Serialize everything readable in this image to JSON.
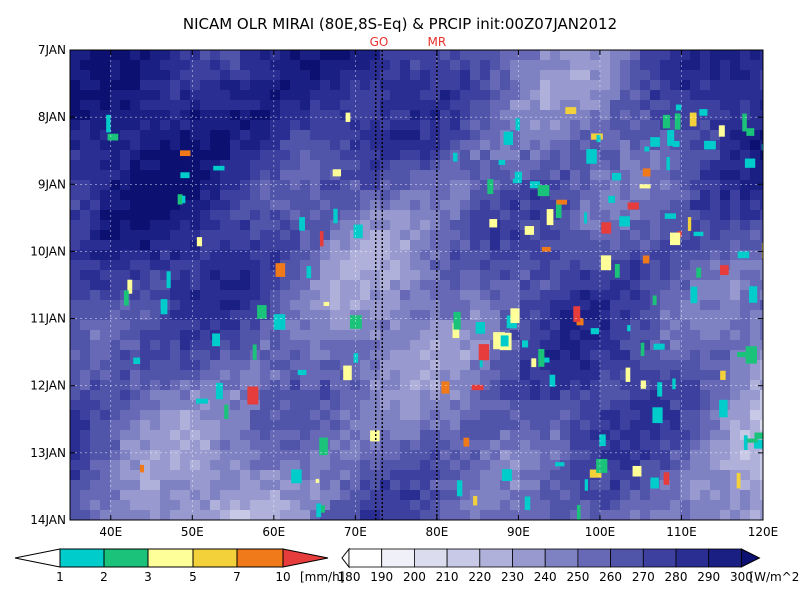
{
  "chart_data": {
    "type": "heatmap",
    "title": "NICAM OLR MIRAI (80E,8S-Eq) & PRCIP init:00Z07JAN2012",
    "x_ticks": [
      "40E",
      "50E",
      "60E",
      "70E",
      "80E",
      "90E",
      "100E",
      "110E",
      "120E"
    ],
    "x_tick_values": [
      40,
      50,
      60,
      70,
      80,
      90,
      100,
      110,
      120
    ],
    "xlim": [
      35,
      120
    ],
    "y_ticks": [
      "7JAN",
      "8JAN",
      "9JAN",
      "10JAN",
      "11JAN",
      "12JAN",
      "13JAN",
      "14JAN"
    ],
    "y_tick_values": [
      0,
      1,
      2,
      3,
      4,
      5,
      6,
      7
    ],
    "ylim_days_from_7JAN": [
      0,
      7
    ],
    "grid": true,
    "markers": [
      {
        "label": "GO",
        "x_values": [
          72.5,
          73.3
        ]
      },
      {
        "label": "MR",
        "x_values": [
          80
        ]
      }
    ],
    "precip_colorbar": {
      "levels": [
        "1",
        "2",
        "3",
        "5",
        "7",
        "10"
      ],
      "unit": "[mm/h]",
      "colors": [
        "#00cccc",
        "#1bc27a",
        "#ffff99",
        "#f2d13a",
        "#f07a1a",
        "#e63c3c"
      ]
    },
    "olr_colorbar": {
      "levels": [
        "180",
        "190",
        "200",
        "210",
        "220",
        "230",
        "240",
        "250",
        "260",
        "270",
        "280",
        "290",
        "300"
      ],
      "unit": "[W/m^2]",
      "colors": [
        "#ffffff",
        "#f0f0f8",
        "#dcdcef",
        "#c8c9e6",
        "#b0b1db",
        "#9899cf",
        "#7f82c2",
        "#6769b6",
        "#5155aa",
        "#3d409e",
        "#2a2e92",
        "#1a1f84",
        "#0c1070"
      ]
    }
  }
}
